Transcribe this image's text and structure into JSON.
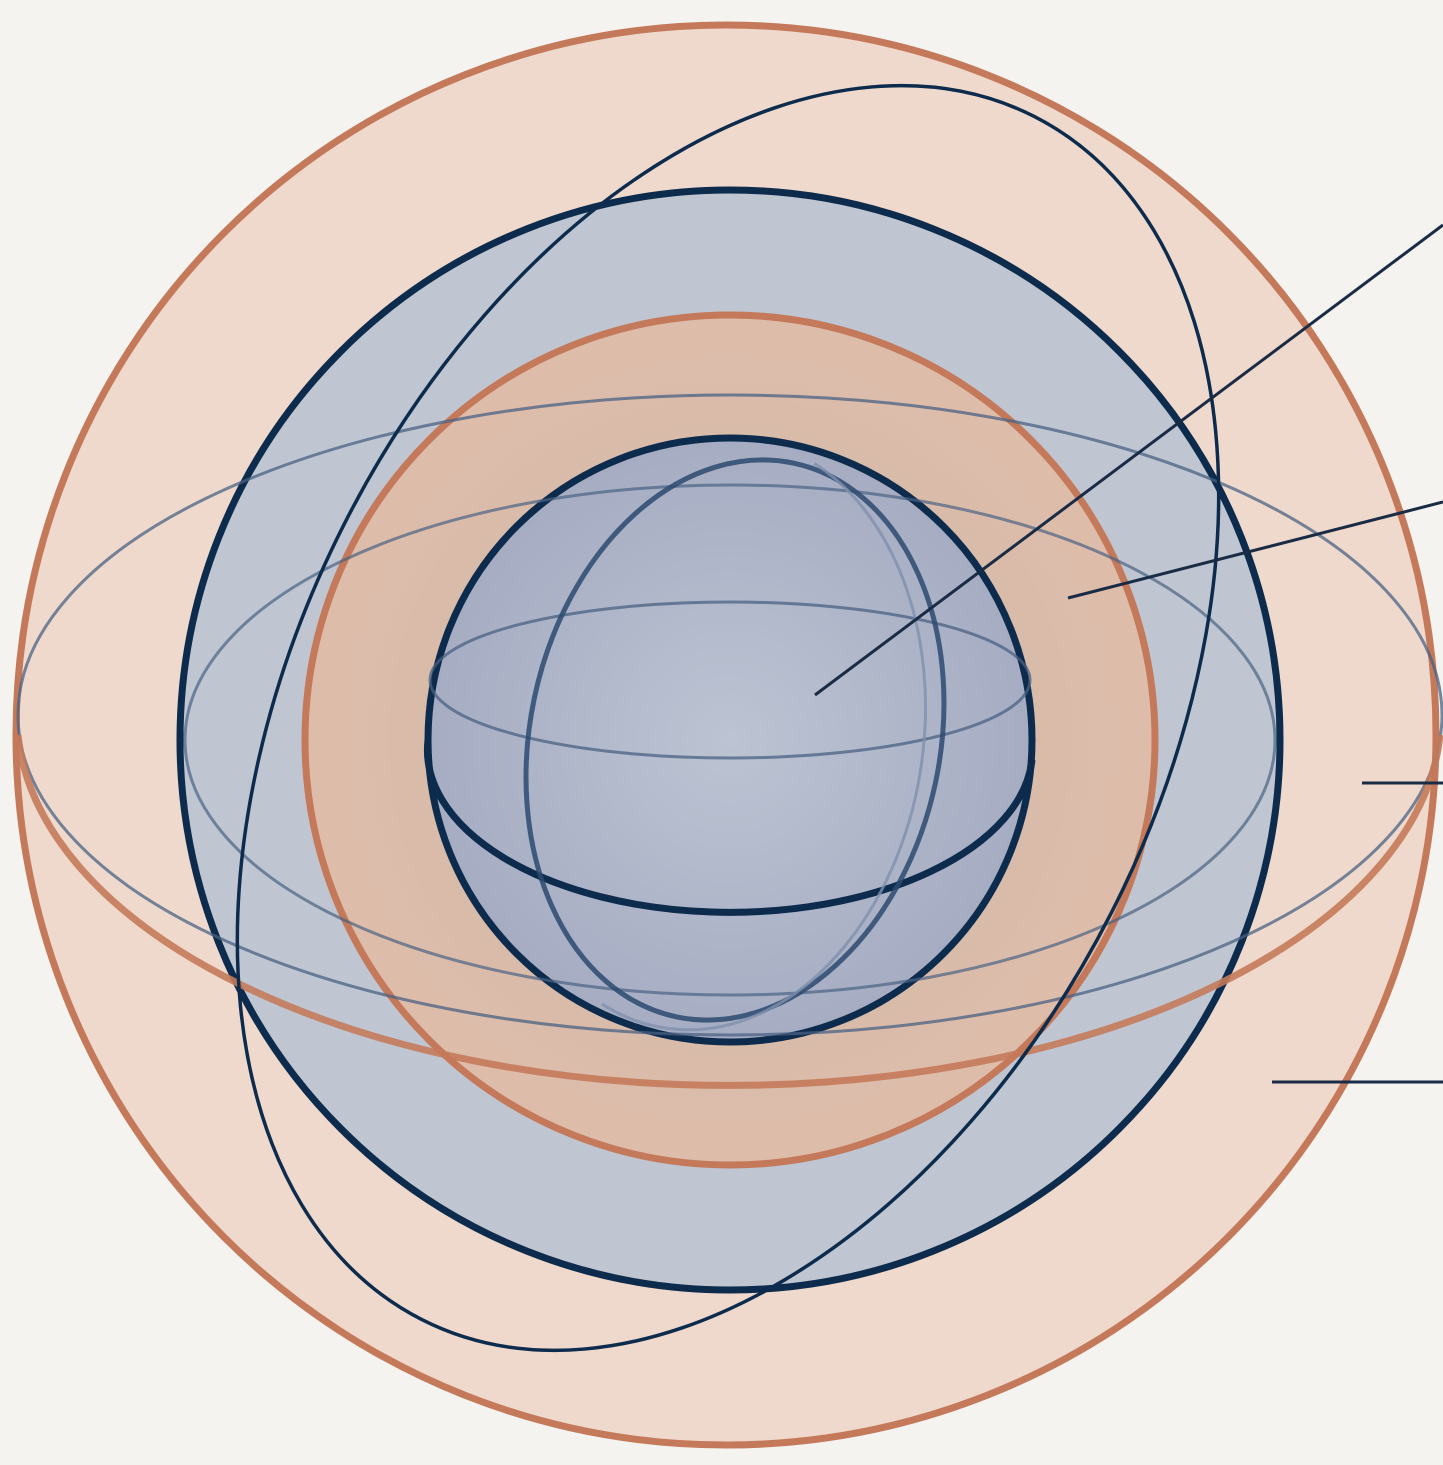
{
  "diagram": {
    "type": "nested-spheres",
    "labels": [],
    "colors": {
      "background": "#f4f3ef",
      "copper_stroke": "#c47a5a",
      "copper_fill": "#e8c3ae",
      "navy_stroke": "#0d2b4c",
      "navy_fill": "#9fb0c6",
      "leader_line": "#1a2b45"
    },
    "layers": [
      {
        "name": "outer-sphere",
        "tone": "copper"
      },
      {
        "name": "second-sphere",
        "tone": "navy"
      },
      {
        "name": "third-sphere",
        "tone": "copper"
      },
      {
        "name": "inner-sphere",
        "tone": "navy"
      }
    ],
    "callouts": [
      {
        "name": "callout-inner-sphere"
      },
      {
        "name": "callout-third-sphere"
      },
      {
        "name": "callout-outer-right"
      },
      {
        "name": "callout-outer-lower"
      }
    ]
  }
}
